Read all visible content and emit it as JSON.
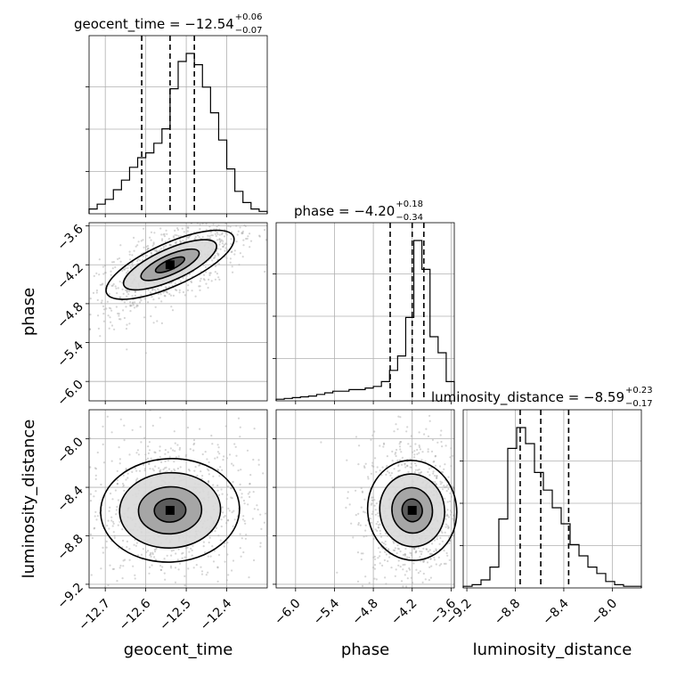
{
  "chart_data": {
    "type": "corner",
    "parameters": [
      {
        "name": "geocent_time",
        "label": "geocent_time",
        "title_main": "geocent_time = −12.54",
        "title_plus": "+0.06",
        "title_minus": "−0.07",
        "median": -12.54,
        "q_low": -12.61,
        "q_high": -12.48,
        "range": [
          -12.74,
          -12.3
        ],
        "ticks": [
          -12.7,
          -12.6,
          -12.5,
          -12.4
        ],
        "tick_labels": [
          "−12.7",
          "−12.6",
          "−12.5",
          "−12.4"
        ],
        "hist": [
          0.03,
          0.06,
          0.09,
          0.15,
          0.21,
          0.29,
          0.35,
          0.38,
          0.44,
          0.53,
          0.78,
          0.95,
          1.0,
          0.93,
          0.79,
          0.63,
          0.46,
          0.28,
          0.14,
          0.07,
          0.03,
          0.015
        ]
      },
      {
        "name": "phase",
        "label": "phase",
        "title_main": "phase = −4.20",
        "title_plus": "+0.18",
        "title_minus": "−0.34",
        "median": -4.2,
        "q_low": -4.54,
        "q_high": -4.02,
        "range": [
          -6.3,
          -3.55
        ],
        "ticks": [
          -6.0,
          -5.4,
          -4.8,
          -4.2,
          -3.6
        ],
        "tick_labels": [
          "−6.0",
          "−5.4",
          "−4.8",
          "−4.2",
          "−3.6"
        ],
        "hist": [
          0.01,
          0.015,
          0.02,
          0.025,
          0.03,
          0.04,
          0.05,
          0.06,
          0.06,
          0.07,
          0.07,
          0.08,
          0.09,
          0.12,
          0.19,
          0.28,
          0.52,
          1.0,
          0.82,
          0.4,
          0.3,
          0.12
        ]
      },
      {
        "name": "luminosity_distance",
        "label": "luminosity_distance",
        "title_main": "luminosity_distance = −8.59",
        "title_plus": "+0.23",
        "title_minus": "−0.17",
        "median": -8.59,
        "q_low": -8.76,
        "q_high": -8.36,
        "range": [
          -9.23,
          -7.76
        ],
        "ticks": [
          -9.2,
          -8.8,
          -8.4,
          -8.0
        ],
        "tick_labels": [
          "−9.2",
          "−8.8",
          "−8.4",
          "−8.0"
        ],
        "hist": [
          0.01,
          0.02,
          0.05,
          0.13,
          0.43,
          0.87,
          1.0,
          0.9,
          0.72,
          0.61,
          0.5,
          0.4,
          0.27,
          0.2,
          0.13,
          0.09,
          0.04,
          0.02,
          0.01,
          0.01
        ]
      }
    ],
    "corr": {
      "1_0": 0.7,
      "2_0": 0.05,
      "2_1": 0.1
    },
    "grid": true
  }
}
